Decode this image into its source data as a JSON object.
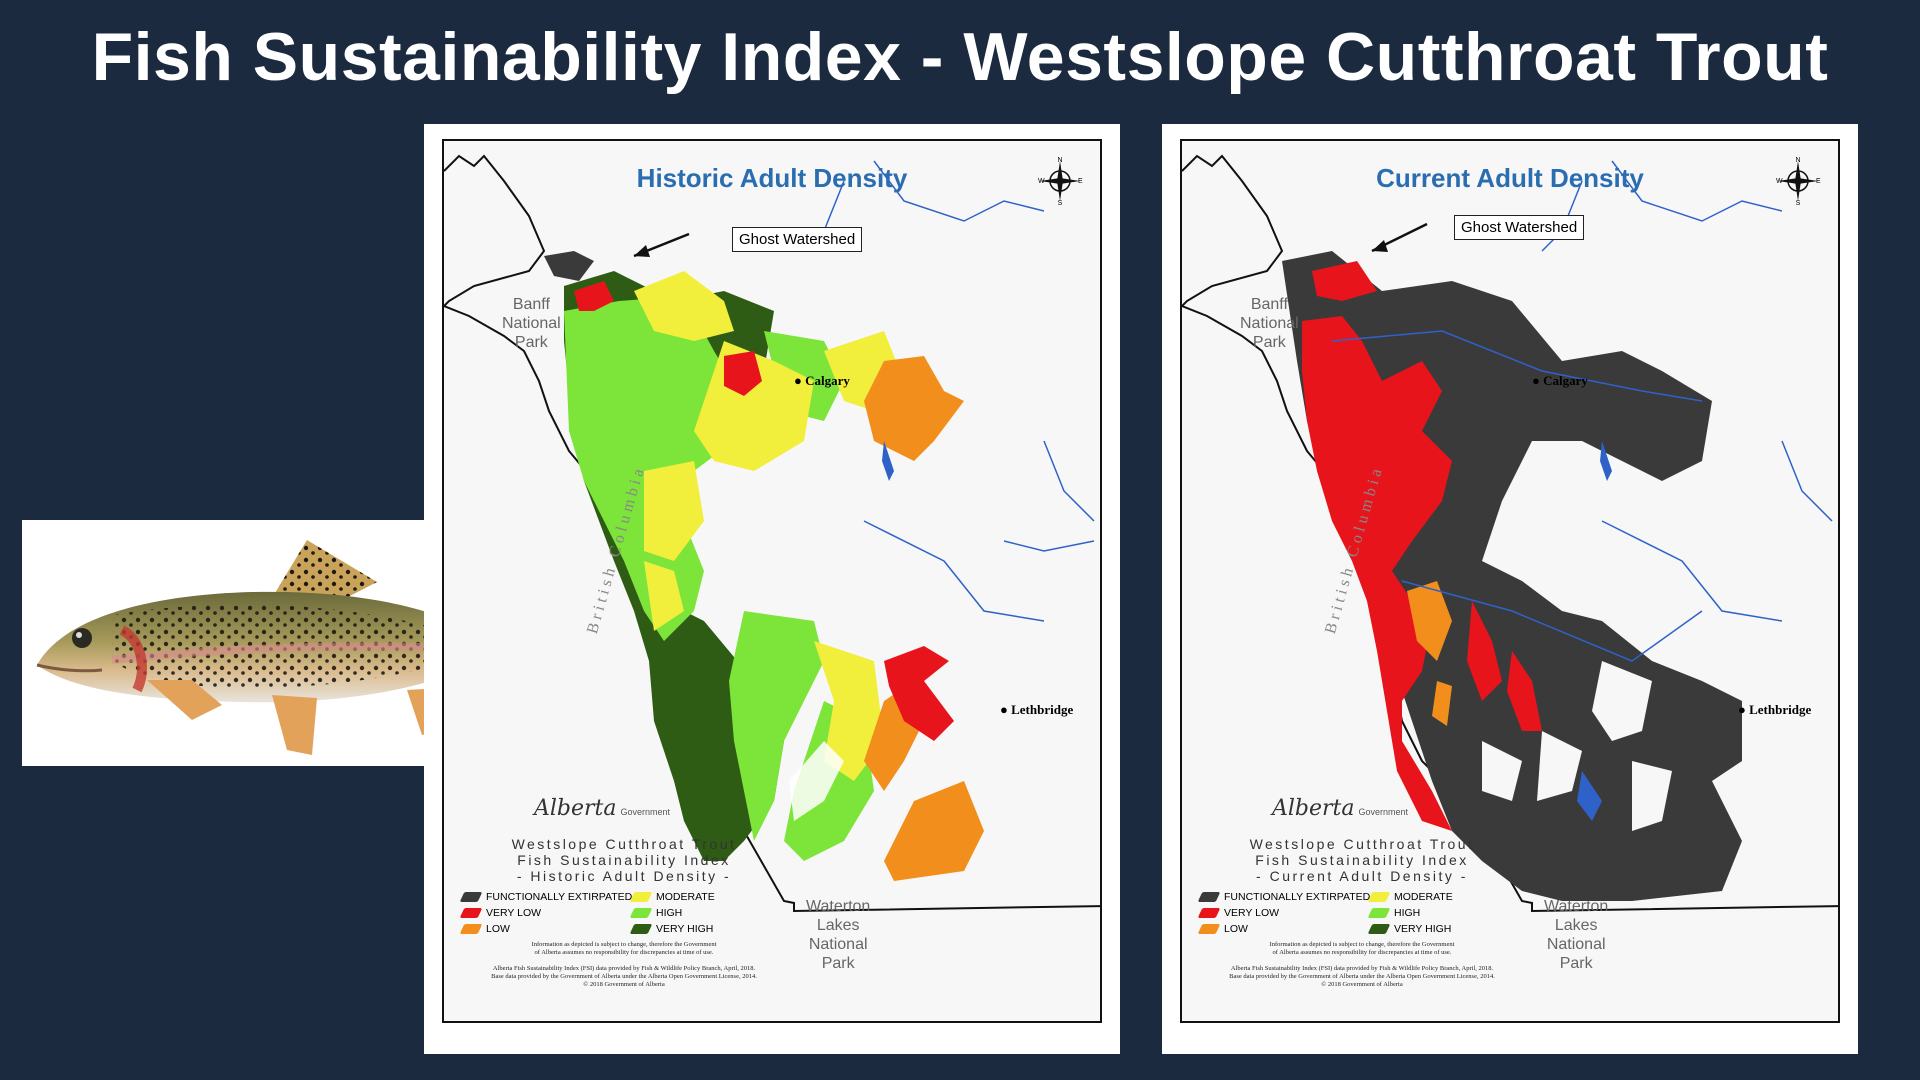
{
  "page": {
    "title": "Fish Sustainability Index - Westslope Cutthroat Trout"
  },
  "colors": {
    "background": "#1b2a3f",
    "functionally_extirpated": "#3a3a3a",
    "very_low": "#e8141c",
    "low": "#f28f1c",
    "moderate": "#f2ee3c",
    "high": "#7de53a",
    "very_high": "#2e5c14",
    "map_title": "#2a6db0",
    "rivers": "#2f62c9"
  },
  "maps": [
    {
      "title": "Historic Adult Density",
      "callout": "Ghost Watershed",
      "places": {
        "banff": [
          "Banff",
          "National",
          "Park"
        ],
        "waterton": [
          "Waterton",
          "Lakes",
          "National",
          "Park"
        ],
        "calgary": "Calgary",
        "lethbridge": "Lethbridge",
        "british_columbia": "British Columbia"
      },
      "government": {
        "brand": "Alberta",
        "suffix": "Government"
      },
      "legend_title": [
        "Westslope Cutthroat Trout",
        "Fish Sustainability Index",
        "- Historic Adult Density -"
      ],
      "dominant_classes": [
        "very_high",
        "high",
        "moderate",
        "low",
        "very_low",
        "functionally_extirpated"
      ]
    },
    {
      "title": "Current Adult Density",
      "callout": "Ghost Watershed",
      "places": {
        "banff": [
          "Banff",
          "National",
          "Park"
        ],
        "waterton": [
          "Waterton",
          "Lakes",
          "National",
          "Park"
        ],
        "calgary": "Calgary",
        "lethbridge": "Lethbridge",
        "british_columbia": "British Columbia"
      },
      "government": {
        "brand": "Alberta",
        "suffix": "Government"
      },
      "legend_title": [
        "Westslope Cutthroat Trout",
        "Fish Sustainability Index",
        "- Current Adult Density -"
      ],
      "dominant_classes": [
        "functionally_extirpated",
        "very_low",
        "low"
      ]
    }
  ],
  "legend": [
    {
      "label": "FUNCTIONALLY EXTIRPATED",
      "color": "#3a3a3a"
    },
    {
      "label": "MODERATE",
      "color": "#f2ee3c"
    },
    {
      "label": "VERY LOW",
      "color": "#e8141c"
    },
    {
      "label": "HIGH",
      "color": "#7de53a"
    },
    {
      "label": "LOW",
      "color": "#f28f1c"
    },
    {
      "label": "VERY HIGH",
      "color": "#2e5c14"
    }
  ],
  "disclaimer": {
    "line1": "Information as depicted is subject to change, therefore the Government",
    "line2": "of Alberta assumes no responsibility for discrepancies at time of use.",
    "line3": "Alberta Fish Sustainability Index (FSI) data provided by Fish & Wildlife Policy Branch, April, 2018.",
    "line4": "Base data provided by the Government of Alberta under the Alberta Open Government License, 2014.",
    "line5": "© 2018 Government of Alberta"
  },
  "compass": {
    "n": "N",
    "s": "S",
    "e": "E",
    "w": "W"
  }
}
